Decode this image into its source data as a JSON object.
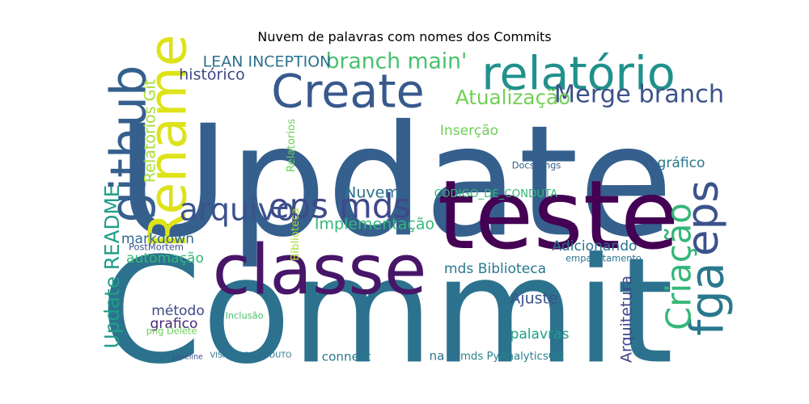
{
  "chart_data": {
    "type": "wordcloud",
    "title": "Nuvem de palavras com nomes dos Commits",
    "words": [
      {
        "text": "Update",
        "size": 1.0,
        "color": "#355f8d"
      },
      {
        "text": "Commit",
        "size": 0.95,
        "color": "#2c728e"
      },
      {
        "text": "teste",
        "size": 0.62,
        "color": "#440154"
      },
      {
        "text": "classe",
        "size": 0.45,
        "color": "#481668"
      },
      {
        "text": "Rename",
        "size": 0.34,
        "color": "#dde318"
      },
      {
        "text": "github",
        "size": 0.32,
        "color": "#355f8d"
      },
      {
        "text": "Create",
        "size": 0.3,
        "color": "#38598c"
      },
      {
        "text": "relatório",
        "size": 0.3,
        "color": "#21918c"
      },
      {
        "text": "fga",
        "size": 0.3,
        "color": "#2a788e"
      },
      {
        "text": "eps",
        "size": 0.28,
        "color": "#3b528b"
      },
      {
        "text": "eps mds",
        "size": 0.22,
        "color": "#3e4989"
      },
      {
        "text": "Criação",
        "size": 0.22,
        "color": "#35b779"
      },
      {
        "text": "arquivo",
        "size": 0.2,
        "color": "#3b528b"
      },
      {
        "text": "Merge branch",
        "size": 0.16,
        "color": "#3b528b"
      },
      {
        "text": "branch main'",
        "size": 0.14,
        "color": "#48c16e"
      },
      {
        "text": "Atualização",
        "size": 0.13,
        "color": "#73d055"
      },
      {
        "text": "Update README",
        "size": 0.13,
        "color": "#1f9e89"
      },
      {
        "text": "LEAN INCEPTION",
        "size": 0.1,
        "color": "#2c728e"
      },
      {
        "text": "histórico",
        "size": 0.1,
        "color": "#3e4989"
      },
      {
        "text": "Relatorios Git",
        "size": 0.1,
        "color": "#a8db34"
      },
      {
        "text": "Nuvem",
        "size": 0.1,
        "color": "#2c728e"
      },
      {
        "text": "Implementação",
        "size": 0.1,
        "color": "#35b779"
      },
      {
        "text": "Arquitetura",
        "size": 0.1,
        "color": "#3e4989"
      },
      {
        "text": "Ajuste",
        "size": 0.1,
        "color": "#3b528b"
      },
      {
        "text": "Inserção",
        "size": 0.09,
        "color": "#6ece58"
      },
      {
        "text": "markdown",
        "size": 0.09,
        "color": "#31688e"
      },
      {
        "text": "Adicionando",
        "size": 0.09,
        "color": "#2c728e"
      },
      {
        "text": "gráfico",
        "size": 0.09,
        "color": "#2a788e"
      },
      {
        "text": "automação",
        "size": 0.09,
        "color": "#35b779"
      },
      {
        "text": "mds Biblioteca",
        "size": 0.09,
        "color": "#2a788e"
      },
      {
        "text": "método",
        "size": 0.09,
        "color": "#3e4989"
      },
      {
        "text": "grafico",
        "size": 0.09,
        "color": "#482878"
      },
      {
        "text": "palavras",
        "size": 0.09,
        "color": "#1fa088"
      },
      {
        "text": "connect",
        "size": 0.08,
        "color": "#2a788e"
      },
      {
        "text": "na",
        "size": 0.08,
        "color": "#2c728e"
      },
      {
        "text": "mds PyAnalyticsGit",
        "size": 0.07,
        "color": "#26828e"
      },
      {
        "text": "CODIGO_DE_CONDUTA",
        "size": 0.07,
        "color": "#35b779"
      },
      {
        "text": "Relatorios",
        "size": 0.07,
        "color": "#6ece58"
      },
      {
        "text": "Biblioteca",
        "size": 0.07,
        "color": "#a8db34"
      },
      {
        "text": "Docstrings",
        "size": 0.06,
        "color": "#355f8d"
      },
      {
        "text": "PostMortem",
        "size": 0.06,
        "color": "#3b528b"
      },
      {
        "text": "empacotamento",
        "size": 0.06,
        "color": "#2c728e"
      },
      {
        "text": "Inclusão",
        "size": 0.06,
        "color": "#4ac16d"
      },
      {
        "text": "png Delete",
        "size": 0.06,
        "color": "#6ece58"
      },
      {
        "text": "pipeline",
        "size": 0.05,
        "color": "#3b528b"
      },
      {
        "text": "VISAO_DO_PRODUTO",
        "size": 0.05,
        "color": "#2c728e"
      }
    ]
  }
}
